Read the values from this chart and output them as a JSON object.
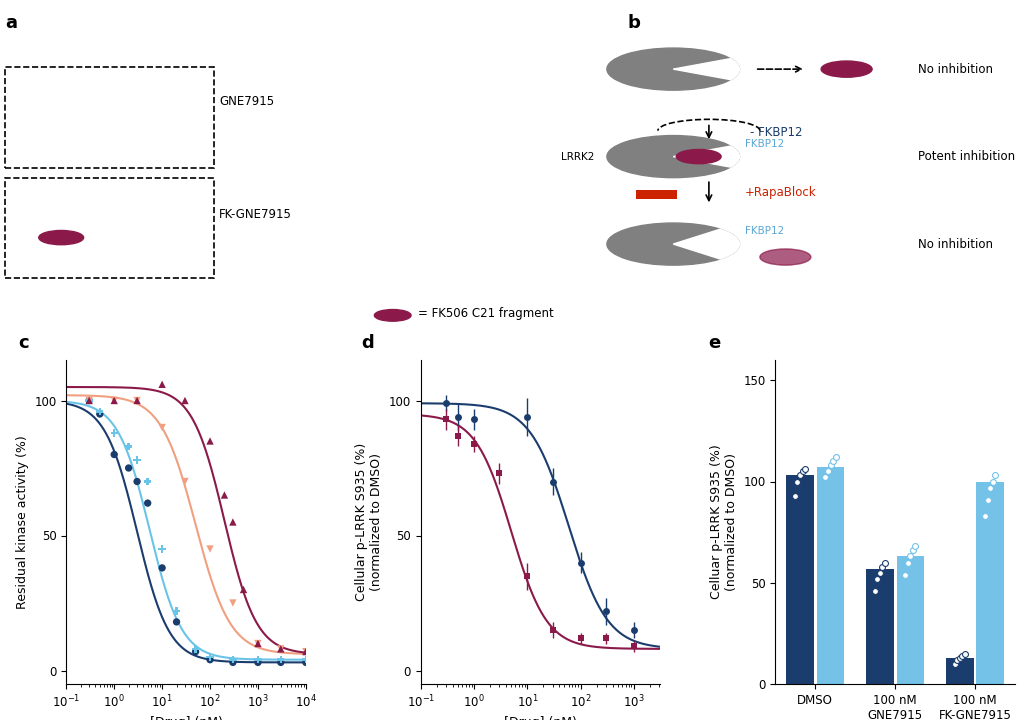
{
  "panel_c": {
    "xlabel": "[Drug] (nM)",
    "ylabel": "Residual kinase activity (%)",
    "xlim_log": [
      -1,
      4
    ],
    "ylim": [
      -5,
      115
    ],
    "yticks": [
      0,
      50,
      100
    ],
    "series": {
      "GNE7915": {
        "color": "#1b3d6e",
        "marker": "o",
        "markersize": 5,
        "x": [
          0.3,
          0.5,
          1.0,
          2.0,
          3.0,
          5.0,
          10.0,
          20.0,
          50.0,
          100.0,
          300.0,
          1000.0,
          3000.0,
          10000.0
        ],
        "y": [
          100,
          95,
          80,
          75,
          70,
          62,
          38,
          18,
          7,
          4,
          3,
          3,
          3,
          3
        ],
        "ic50": 3.0,
        "hill": 1.3,
        "top": 100,
        "bottom": 3
      },
      "GNE7915_FKBP12": {
        "color": "#6ac4e8",
        "marker": "P",
        "markersize": 5,
        "x": [
          0.3,
          0.5,
          1.0,
          2.0,
          3.0,
          5.0,
          10.0,
          20.0,
          50.0,
          100.0,
          300.0,
          1000.0,
          3000.0,
          10000.0
        ],
        "y": [
          100,
          96,
          88,
          83,
          78,
          70,
          45,
          22,
          8,
          5,
          4,
          4,
          4,
          4
        ],
        "ic50": 5.5,
        "hill": 1.3,
        "top": 100,
        "bottom": 4
      },
      "FK_GNE7915_FKBP12": {
        "color": "#f0a080",
        "marker": "v",
        "markersize": 5,
        "x": [
          0.3,
          1.0,
          3.0,
          10.0,
          30.0,
          100.0,
          300.0,
          1000.0,
          3000.0,
          10000.0
        ],
        "y": [
          100,
          100,
          100,
          90,
          70,
          45,
          25,
          10,
          8,
          7
        ],
        "ic50": 50,
        "hill": 1.2,
        "top": 102,
        "bottom": 6
      },
      "FK_GNE7915": {
        "color": "#8b1a4a",
        "marker": "^",
        "markersize": 5,
        "x": [
          0.3,
          1.0,
          3.0,
          10.0,
          30.0,
          100.0,
          200.0,
          300.0,
          500.0,
          1000.0,
          3000.0,
          10000.0
        ],
        "y": [
          100,
          100,
          100,
          106,
          100,
          85,
          65,
          55,
          30,
          10,
          8,
          7
        ],
        "ic50": 200,
        "hill": 1.3,
        "top": 105,
        "bottom": 6
      }
    }
  },
  "panel_d": {
    "xlabel": "[Drug] (nM)",
    "ylabel": "Cellular p-LRRK S935 (%)\n(normalized to DMSO)",
    "xlim_log": [
      -1,
      3.5
    ],
    "ylim": [
      -5,
      115
    ],
    "yticks": [
      0,
      50,
      100
    ],
    "series": {
      "GNE7915": {
        "color": "#1b3d6e",
        "marker": "o",
        "markersize": 5,
        "x": [
          0.3,
          0.5,
          1.0,
          10.0,
          30.0,
          100.0,
          300.0,
          1000.0
        ],
        "y": [
          99,
          94,
          93,
          94,
          70,
          40,
          22,
          15
        ],
        "yerr": [
          3,
          5,
          4,
          7,
          5,
          4,
          5,
          3
        ],
        "ic50": 60,
        "hill": 1.2,
        "top": 99,
        "bottom": 8
      },
      "FK_GNE7915": {
        "color": "#8b1a4a",
        "marker": "s",
        "markersize": 5,
        "x": [
          0.3,
          0.5,
          1.0,
          3.0,
          10.0,
          30.0,
          100.0,
          300.0,
          1000.0
        ],
        "y": [
          93,
          87,
          84,
          73,
          35,
          15,
          12,
          12,
          9
        ],
        "yerr": [
          4,
          4,
          3,
          4,
          5,
          3,
          2,
          2,
          2
        ],
        "ic50": 5.0,
        "hill": 1.3,
        "top": 95,
        "bottom": 8
      }
    }
  },
  "panel_e": {
    "ylabel": "Celluar p-LRRK S935 (%)\n(normalized to DMSO)",
    "ylim": [
      0,
      160
    ],
    "yticks": [
      0,
      50,
      100,
      150
    ],
    "categories": [
      "DMSO",
      "100 nM\nGNE7915",
      "100 nM\nFK-GNE7915"
    ],
    "no_rapablock": {
      "color": "#1b3d6e",
      "values": [
        103,
        57,
        13
      ],
      "scatter": [
        [
          93,
          100,
          103,
          105,
          106
        ],
        [
          46,
          52,
          55,
          58,
          60
        ],
        [
          10,
          12,
          13,
          14,
          15
        ]
      ]
    },
    "rapablock": {
      "color": "#74c2e8",
      "values": [
        107,
        63,
        100
      ],
      "scatter": [
        [
          102,
          105,
          108,
          110,
          112
        ],
        [
          54,
          60,
          63,
          66,
          68
        ],
        [
          83,
          91,
          97,
          100,
          103
        ]
      ]
    }
  },
  "colors": {
    "dark_blue": "#1b3d6e",
    "dark_red": "#8b1a4a",
    "light_blue": "#6ac4e8",
    "light_salmon": "#f0a080",
    "light_blue2": "#74c2e8"
  },
  "label_a": "a",
  "label_b": "b",
  "label_c": "c",
  "label_d": "d",
  "label_e": "e"
}
